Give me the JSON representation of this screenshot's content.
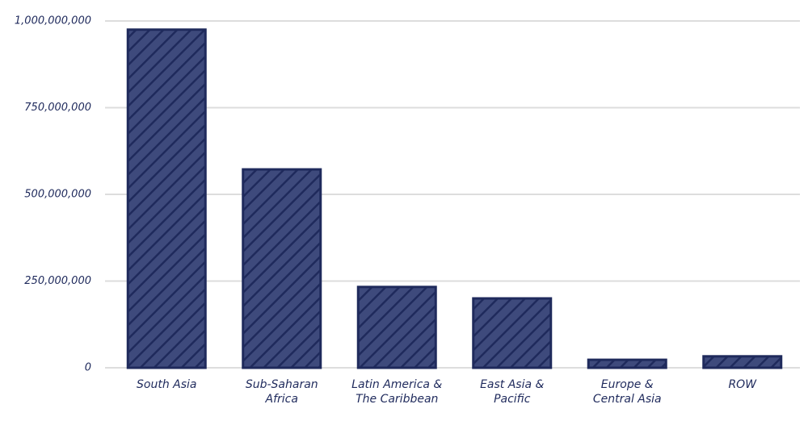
{
  "chart_data": {
    "type": "bar",
    "categories": [
      "South Asia",
      "Sub-Saharan Africa",
      "Latin America & The Caribbean",
      "East Asia & Pacific",
      "Europe & Central Asia",
      "ROW"
    ],
    "values": [
      975000000,
      572000000,
      233000000,
      200000000,
      23000000,
      33000000
    ],
    "color": "#3e4a7c",
    "ylim": [
      0,
      1000000000
    ],
    "yticks": [
      0,
      {
        "value": 250000000,
        "label": "250,000,000"
      },
      {
        "value": 500000000,
        "label": "500,000,000"
      },
      {
        "value": 750000000,
        "label": "750,000,000"
      },
      {
        "value": 1000000000,
        "label": "1,000,000,000"
      }
    ],
    "grid": true
  }
}
